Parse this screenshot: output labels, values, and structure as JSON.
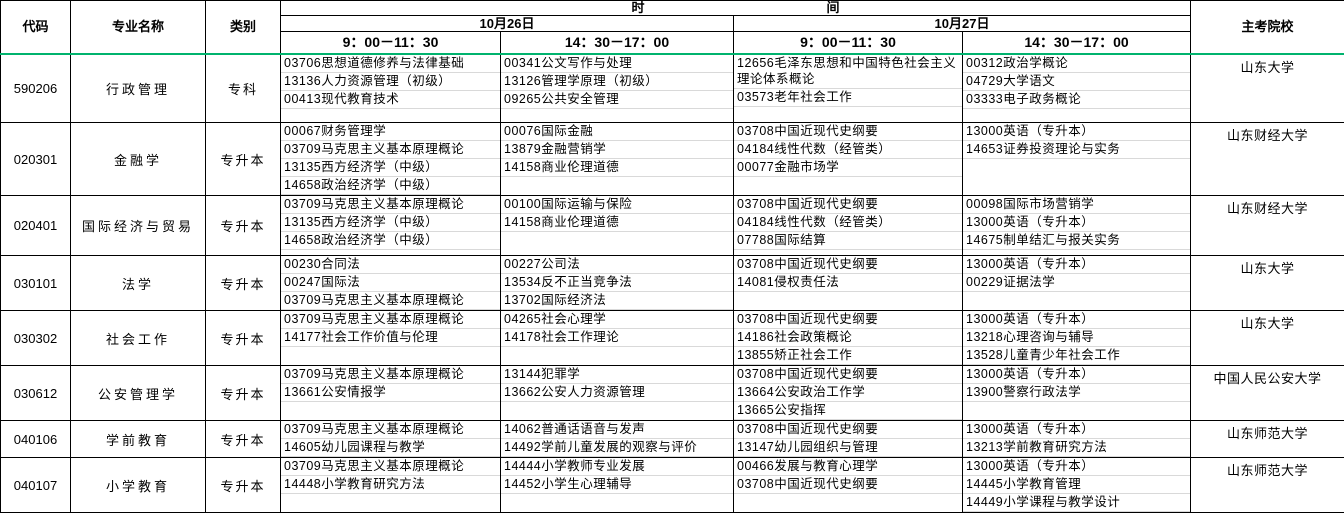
{
  "header": {
    "code": "代码",
    "major": "专业名称",
    "category": "类别",
    "time": "时　　　　　　　　　　　　　　间",
    "day1": "10月26日",
    "day2": "10月27日",
    "slot_am": "9：00－11：30",
    "slot_pm": "14：30－17：00",
    "institution": "主考院校"
  },
  "accent": {
    "header_divider_color": "#00b36e",
    "grid_color": "#d9d9d9",
    "border_color": "#000000"
  },
  "rows": [
    {
      "code": "590206",
      "major": "行政管理",
      "category": "专科",
      "d1am": [
        "03706思想道德修养与法律基础",
        "13136人力资源管理（初级）",
        "00413现代教育技术"
      ],
      "d1pm": [
        "00341公文写作与处理",
        "13126管理学原理（初级）",
        "09265公共安全管理"
      ],
      "d2am": [
        "12656毛泽东思想和中国特色社会主义理论体系概论",
        "03573老年社会工作"
      ],
      "d2pm": [
        "00312政治学概论",
        "04729大学语文",
        "03333电子政务概论"
      ],
      "institution": "山东大学"
    },
    {
      "code": "020301",
      "major": "金融学",
      "category": "专升本",
      "d1am": [
        "00067财务管理学",
        "03709马克思主义基本原理概论",
        "13135西方经济学（中级）",
        "14658政治经济学（中级）"
      ],
      "d1pm": [
        "00076国际金融",
        "13879金融营销学",
        "14158商业伦理道德"
      ],
      "d2am": [
        "03708中国近现代史纲要",
        "04184线性代数（经管类）",
        "00077金融市场学"
      ],
      "d2pm": [
        "13000英语（专升本）",
        "14653证券投资理论与实务"
      ],
      "institution": "山东财经大学"
    },
    {
      "code": "020401",
      "major": "国际经济与贸易",
      "category": "专升本",
      "d1am": [
        "03709马克思主义基本原理概论",
        "13135西方经济学（中级）",
        "14658政治经济学（中级）"
      ],
      "d1pm": [
        "00100国际运输与保险",
        "14158商业伦理道德"
      ],
      "d2am": [
        "03708中国近现代史纲要",
        "04184线性代数（经管类）",
        "07788国际结算"
      ],
      "d2pm": [
        "00098国际市场营销学",
        "13000英语（专升本）",
        "14675制单结汇与报关实务"
      ],
      "institution": "山东财经大学"
    },
    {
      "code": "030101",
      "major": "法学",
      "category": "专升本",
      "d1am": [
        "00230合同法",
        "00247国际法",
        "03709马克思主义基本原理概论"
      ],
      "d1pm": [
        "00227公司法",
        "13534反不正当竞争法",
        "13702国际经济法"
      ],
      "d2am": [
        "03708中国近现代史纲要",
        "14081侵权责任法"
      ],
      "d2pm": [
        "13000英语（专升本）",
        "00229证据法学"
      ],
      "institution": "山东大学"
    },
    {
      "code": "030302",
      "major": "社会工作",
      "category": "专升本",
      "d1am": [
        "03709马克思主义基本原理概论",
        "14177社会工作价值与伦理"
      ],
      "d1pm": [
        "04265社会心理学",
        "14178社会工作理论"
      ],
      "d2am": [
        "03708中国近现代史纲要",
        "14186社会政策概论",
        "13855矫正社会工作"
      ],
      "d2pm": [
        "13000英语（专升本）",
        "13218心理咨询与辅导",
        "13528儿童青少年社会工作"
      ],
      "institution": "山东大学"
    },
    {
      "code": "030612",
      "major": "公安管理学",
      "category": "专升本",
      "d1am": [
        "03709马克思主义基本原理概论",
        "13661公安情报学"
      ],
      "d1pm": [
        "13144犯罪学",
        "13662公安人力资源管理"
      ],
      "d2am": [
        "03708中国近现代史纲要",
        "13664公安政治工作学",
        "13665公安指挥"
      ],
      "d2pm": [
        "13000英语（专升本）",
        "13900警察行政法学"
      ],
      "institution": "中国人民公安大学"
    },
    {
      "code": "040106",
      "major": "学前教育",
      "category": "专升本",
      "d1am": [
        "03709马克思主义基本原理概论",
        "14605幼儿园课程与教学"
      ],
      "d1pm": [
        "14062普通话语音与发声",
        "14492学前儿童发展的观察与评价"
      ],
      "d2am": [
        "03708中国近现代史纲要",
        "13147幼儿园组织与管理"
      ],
      "d2pm": [
        "13000英语（专升本）",
        "13213学前教育研究方法"
      ],
      "institution": "山东师范大学"
    },
    {
      "code": "040107",
      "major": "小学教育",
      "category": "专升本",
      "d1am": [
        "03709马克思主义基本原理概论",
        "14448小学教育研究方法"
      ],
      "d1pm": [
        "14444小学教师专业发展",
        "14452小学生心理辅导"
      ],
      "d2am": [
        "00466发展与教育心理学",
        "03708中国近现代史纲要"
      ],
      "d2pm": [
        "13000英语（专升本）",
        "14445小学教育管理",
        "14449小学课程与教学设计"
      ],
      "institution": "山东师范大学"
    }
  ]
}
